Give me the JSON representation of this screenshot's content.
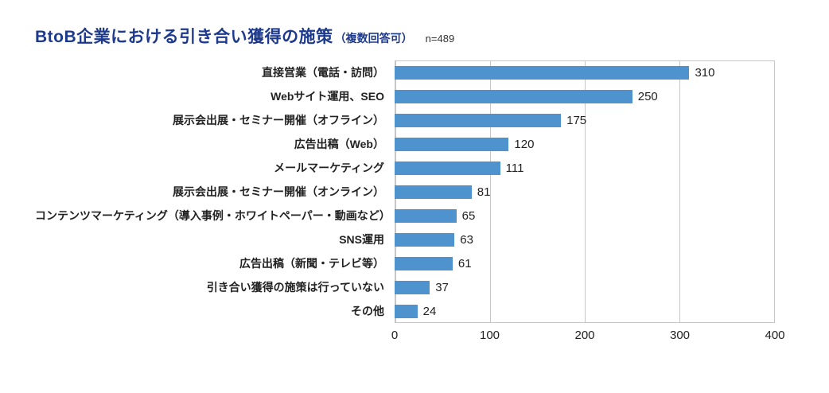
{
  "header": {
    "title": "BtoB企業における引き合い獲得の施策",
    "subtitle": "（複数回答可）",
    "sample": "n=489"
  },
  "colors": {
    "title": "#1d3a8d",
    "bar": "#4f93ce",
    "grid": "#c6c6c6",
    "text": "#222222"
  },
  "chart_data": {
    "type": "bar",
    "orientation": "horizontal",
    "title": "BtoB企業における引き合い獲得の施策（複数回答可）",
    "sample_size": "n=489",
    "categories": [
      "直接営業（電話・訪問）",
      "Webサイト運用、SEO",
      "展示会出展・セミナー開催（オフライン）",
      "広告出稿（Web）",
      "メールマーケティング",
      "展示会出展・セミナー開催（オンライン）",
      "コンテンツマーケティング（導入事例・ホワイトペーパー・動画など）",
      "SNS運用",
      "広告出稿（新聞・テレビ等）",
      "引き合い獲得の施策は行っていない",
      "その他"
    ],
    "values": [
      310,
      250,
      175,
      120,
      111,
      81,
      65,
      63,
      61,
      37,
      24
    ],
    "xlabel": "",
    "ylabel": "",
    "xlim": [
      0,
      400
    ],
    "xticks": [
      0,
      100,
      200,
      300,
      400
    ],
    "grid": "vertical",
    "legend_position": "none"
  }
}
